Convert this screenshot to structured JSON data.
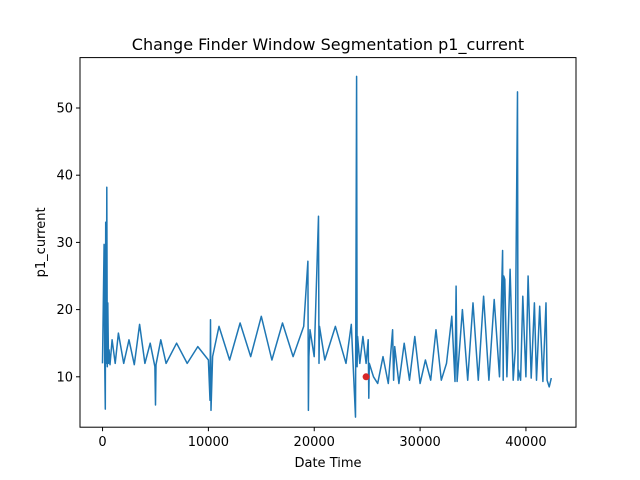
{
  "chart_data": {
    "type": "line",
    "title": "Change Finder Window Segmentation p1_current",
    "xlabel": "Date Time",
    "ylabel": "p1_current",
    "xlim": [
      -2130,
      44730
    ],
    "ylim": [
      2.5,
      57.5
    ],
    "xticks": [
      0,
      10000,
      20000,
      30000,
      40000
    ],
    "yticks": [
      10,
      20,
      30,
      40,
      50
    ],
    "grid": false,
    "series": [
      {
        "color": "#1f77b4",
        "x": [
          0,
          150,
          200,
          260,
          300,
          350,
          400,
          450,
          500,
          560,
          620,
          700,
          900,
          1200,
          1500,
          2000,
          2500,
          3000,
          3500,
          4000,
          4500,
          4950,
          5000,
          5050,
          5500,
          6000,
          7000,
          8000,
          9000,
          10000,
          10150,
          10200,
          10250,
          10400,
          11000,
          12000,
          13000,
          14000,
          15000,
          16000,
          17000,
          18000,
          19000,
          19400,
          19450,
          19500,
          19600,
          20000,
          20400,
          20450,
          20500,
          21000,
          22000,
          23000,
          23500,
          23900,
          24000,
          24050,
          24100,
          24300,
          24600,
          24900,
          25100,
          25150,
          25200,
          25400,
          25600,
          26000,
          26500,
          27000,
          27400,
          27500,
          27600,
          28000,
          28500,
          29000,
          29500,
          30000,
          30500,
          31000,
          31500,
          32000,
          32500,
          33000,
          33300,
          33400,
          33500,
          34000,
          34500,
          35000,
          35500,
          36000,
          36500,
          37000,
          37500,
          37800,
          37850,
          37900,
          38000,
          38200,
          38500,
          38800,
          39000,
          39200,
          39250,
          39300,
          39500,
          39700,
          40000,
          40200,
          40500,
          40800,
          41000,
          41300,
          41600,
          41900,
          42000,
          42200,
          42400
        ],
        "y": [
          12.0,
          29.7,
          12.5,
          5.2,
          33.0,
          12.0,
          38.2,
          11.5,
          21.0,
          12.0,
          14.0,
          11.8,
          15.5,
          12.0,
          16.5,
          12.0,
          15.5,
          11.8,
          17.8,
          12.0,
          15.0,
          11.5,
          5.8,
          11.8,
          15.5,
          12.0,
          15.0,
          12.0,
          14.5,
          12.5,
          6.5,
          18.5,
          5.0,
          13.0,
          17.5,
          12.5,
          18.0,
          13.0,
          19.0,
          12.5,
          18.0,
          13.0,
          17.5,
          27.2,
          5.0,
          13.0,
          17.0,
          13.0,
          33.9,
          12.0,
          17.5,
          12.5,
          17.5,
          12.0,
          17.8,
          4.0,
          54.7,
          11.5,
          16.0,
          12.0,
          16.0,
          12.0,
          15.5,
          6.8,
          12.0,
          11.0,
          10.0,
          9.0,
          13.0,
          9.0,
          17.0,
          9.5,
          14.5,
          9.0,
          15.0,
          9.5,
          16.0,
          9.0,
          12.5,
          9.5,
          17.0,
          9.5,
          12.0,
          19.0,
          9.3,
          23.5,
          9.3,
          20.0,
          9.5,
          21.0,
          9.5,
          22.0,
          9.5,
          21.5,
          10.0,
          28.8,
          9.5,
          25.0,
          24.5,
          10.0,
          26.0,
          9.5,
          14.0,
          52.4,
          9.5,
          11.0,
          9.5,
          22.0,
          10.0,
          25.0,
          9.8,
          21.0,
          9.5,
          20.5,
          9.3,
          21.0,
          9.5,
          8.5,
          9.8
        ]
      }
    ],
    "markers": [
      {
        "color": "#d62728",
        "x": 24900,
        "y": 10.0
      }
    ]
  }
}
